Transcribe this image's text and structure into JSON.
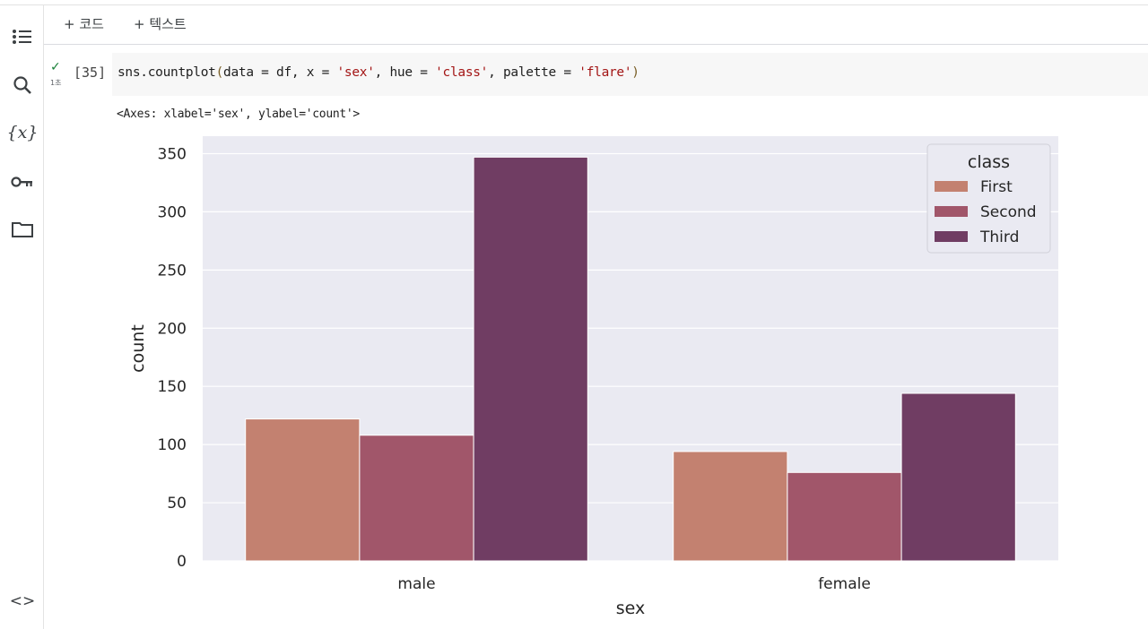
{
  "toolbar": {
    "add_code": "+ 코드",
    "add_text": "+ 텍스트"
  },
  "sidebar": {
    "icons": [
      "table-of-contents-icon",
      "search-icon",
      "variables-icon",
      "key-icon",
      "folder-icon",
      "code-snippets-icon"
    ],
    "variables_glyph": "{x}",
    "snippets_glyph": "<>"
  },
  "cell": {
    "status": "✓",
    "runtime": "1초",
    "exec_count": "[35]",
    "code_tokens": [
      {
        "t": "sns.countplot",
        "c": "plain"
      },
      {
        "t": "(",
        "c": "paren"
      },
      {
        "t": "data = df, x = ",
        "c": "plain"
      },
      {
        "t": "'sex'",
        "c": "str"
      },
      {
        "t": ", hue = ",
        "c": "plain"
      },
      {
        "t": "'class'",
        "c": "str"
      },
      {
        "t": ", palette = ",
        "c": "plain"
      },
      {
        "t": "'flare'",
        "c": "str"
      },
      {
        "t": ")",
        "c": "paren"
      }
    ],
    "output_text": "<Axes: xlabel='sex', ylabel='count'>"
  },
  "chart_data": {
    "type": "bar",
    "categories": [
      "male",
      "female"
    ],
    "series": [
      {
        "name": "First",
        "values": [
          122,
          94
        ],
        "color": "#c38170"
      },
      {
        "name": "Second",
        "values": [
          108,
          76
        ],
        "color": "#a1566a"
      },
      {
        "name": "Third",
        "values": [
          347,
          144
        ],
        "color": "#703d63"
      }
    ],
    "xlabel": "sex",
    "ylabel": "count",
    "ylim": [
      0,
      365
    ],
    "yticks": [
      0,
      50,
      100,
      150,
      200,
      250,
      300,
      350
    ],
    "legend_title": "class",
    "legend_position": "top-right",
    "grid": true,
    "background_color": "#eaeaf2"
  }
}
